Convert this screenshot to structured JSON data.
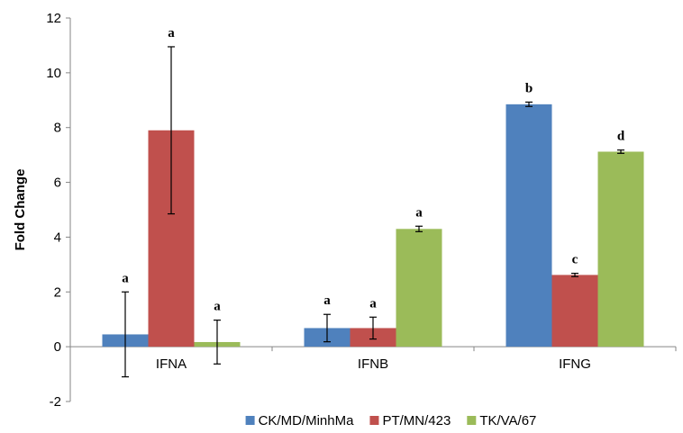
{
  "chart_data": {
    "type": "bar",
    "title": "",
    "xlabel": "",
    "ylabel": "Fold Change",
    "ylim": [
      -2,
      12
    ],
    "yticks": [
      -2,
      0,
      2,
      4,
      6,
      8,
      10,
      12
    ],
    "categories": [
      "IFNA",
      "IFNB",
      "IFNG"
    ],
    "series": [
      {
        "name": "CK/MD/MinhMa",
        "color": "#4f81bd",
        "values": [
          0.45,
          0.68,
          8.85
        ],
        "errors": [
          1.55,
          0.5,
          0.08
        ],
        "labels": [
          "a",
          "a",
          "b"
        ]
      },
      {
        "name": "PT/MN/423",
        "color": "#c0504d",
        "values": [
          7.9,
          0.68,
          2.62
        ],
        "errors": [
          3.05,
          0.4,
          0.06
        ],
        "labels": [
          "a",
          "a",
          "c"
        ]
      },
      {
        "name": "TK/VA/67",
        "color": "#9bbb59",
        "values": [
          0.17,
          4.3,
          7.12
        ],
        "errors": [
          0.8,
          0.1,
          0.06
        ],
        "labels": [
          "a",
          "a",
          "d"
        ]
      }
    ],
    "legend_position": "bottom",
    "grid": false
  }
}
